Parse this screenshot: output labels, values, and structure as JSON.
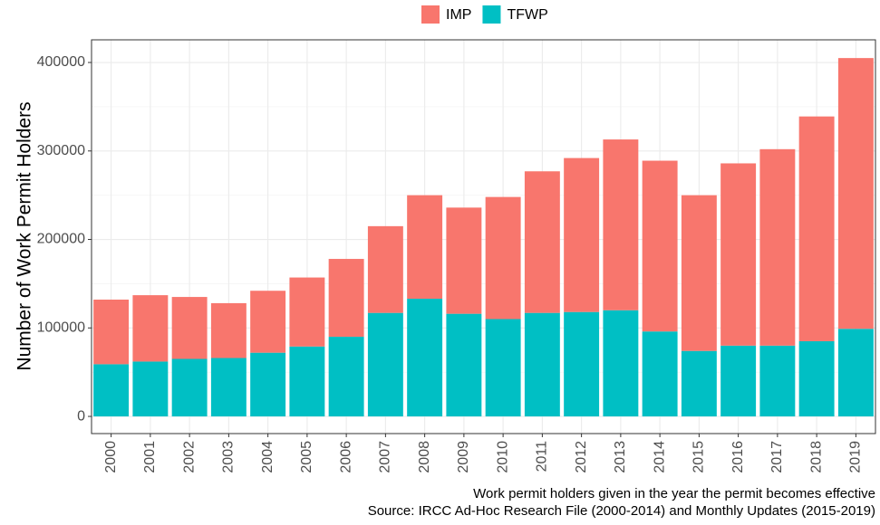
{
  "chart_data": {
    "type": "bar",
    "stacked": true,
    "ylabel": "Number of Work Permit Holders",
    "caption": [
      "Work permit holders given in the year the permit becomes effective",
      "Source: IRCC Ad-Hoc Research File (2000-2014) and Monthly Updates (2015-2019)"
    ],
    "categories": [
      "2000",
      "2001",
      "2002",
      "2003",
      "2004",
      "2005",
      "2006",
      "2007",
      "2008",
      "2009",
      "2010",
      "2011",
      "2012",
      "2013",
      "2014",
      "2015",
      "2016",
      "2017",
      "2018",
      "2019"
    ],
    "series": [
      {
        "name": "IMP",
        "color": "#F8766D",
        "values": [
          73000,
          75000,
          70000,
          62000,
          70000,
          78000,
          88000,
          98000,
          117000,
          120000,
          138000,
          160000,
          174000,
          193000,
          193000,
          176000,
          206000,
          222000,
          254000,
          306000
        ]
      },
      {
        "name": "TFWP",
        "color": "#00BFC4",
        "values": [
          59000,
          62000,
          65000,
          66000,
          72000,
          79000,
          90000,
          117000,
          133000,
          116000,
          110000,
          117000,
          118000,
          120000,
          96000,
          74000,
          80000,
          80000,
          85000,
          99000
        ]
      }
    ],
    "ylim": [
      -19400,
      425600
    ],
    "yticks": [
      0,
      100000,
      200000,
      300000,
      400000
    ],
    "grid": true,
    "legend": "top"
  }
}
